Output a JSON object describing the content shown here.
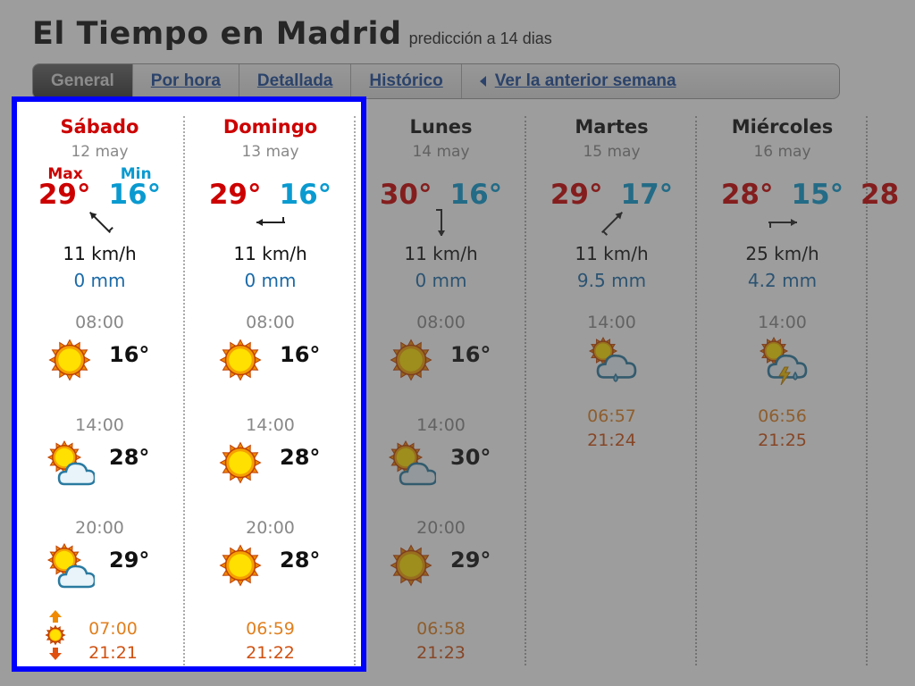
{
  "header": {
    "title": "El Tiempo en Madrid",
    "subtitle": "predicción a 14 dias"
  },
  "tabs": [
    {
      "label": "General",
      "active": true
    },
    {
      "label": "Por hora"
    },
    {
      "label": "Detallada"
    },
    {
      "label": "Histórico"
    },
    {
      "label": "Ver la anterior semana",
      "icon": "triangle-left-icon"
    }
  ],
  "labels": {
    "max": "Max",
    "min": "Min"
  },
  "colors": {
    "highlight": "#0000ff",
    "max": "#cc0000",
    "min": "#0a9ad0",
    "weekend": "#cc0000"
  },
  "days": [
    {
      "name": "Sábado",
      "date": "12 may",
      "weekend": true,
      "max": "29°",
      "min": "16°",
      "wind_dir": "nw",
      "wind": "11 km/h",
      "rain": "0 mm",
      "slots": [
        {
          "time": "08:00",
          "icon": "sun-icon",
          "temp": "16°"
        },
        {
          "time": "14:00",
          "icon": "sun-cloud-icon",
          "temp": "28°"
        },
        {
          "time": "20:00",
          "icon": "sun-cloud-icon",
          "temp": "29°"
        }
      ],
      "sunrise": "07:00",
      "sunset": "21:21",
      "sun_icon": true
    },
    {
      "name": "Domingo",
      "date": "13 may",
      "weekend": true,
      "max": "29°",
      "min": "16°",
      "wind_dir": "w",
      "wind": "11 km/h",
      "rain": "0 mm",
      "slots": [
        {
          "time": "08:00",
          "icon": "sun-icon",
          "temp": "16°"
        },
        {
          "time": "14:00",
          "icon": "sun-icon",
          "temp": "28°"
        },
        {
          "time": "20:00",
          "icon": "sun-icon",
          "temp": "28°"
        }
      ],
      "sunrise": "06:59",
      "sunset": "21:22"
    },
    {
      "name": "Lunes",
      "date": "14 may",
      "max": "30°",
      "min": "16°",
      "wind_dir": "s",
      "wind": "11 km/h",
      "rain": "0 mm",
      "slots": [
        {
          "time": "08:00",
          "icon": "sun-icon",
          "temp": "16°"
        },
        {
          "time": "14:00",
          "icon": "sun-cloud-icon",
          "temp": "30°"
        },
        {
          "time": "20:00",
          "icon": "sun-icon",
          "temp": "29°"
        }
      ],
      "sunrise": "06:58",
      "sunset": "21:23"
    },
    {
      "name": "Martes",
      "date": "15 may",
      "max": "29°",
      "min": "17°",
      "wind_dir": "ne",
      "wind": "11 km/h",
      "rain": "9.5 mm",
      "slots": [
        {
          "time": "14:00",
          "icon": "sun-cloud-rain-icon"
        }
      ],
      "sunrise": "06:57",
      "sunset": "21:24"
    },
    {
      "name": "Miércoles",
      "date": "16 may",
      "max": "28°",
      "min": "15°",
      "wind_dir": "e",
      "wind": "25 km/h",
      "rain": "4.2 mm",
      "slots": [
        {
          "time": "14:00",
          "icon": "sun-cloud-storm-icon"
        }
      ],
      "sunrise": "06:56",
      "sunset": "21:25"
    },
    {
      "max": "28"
    }
  ]
}
